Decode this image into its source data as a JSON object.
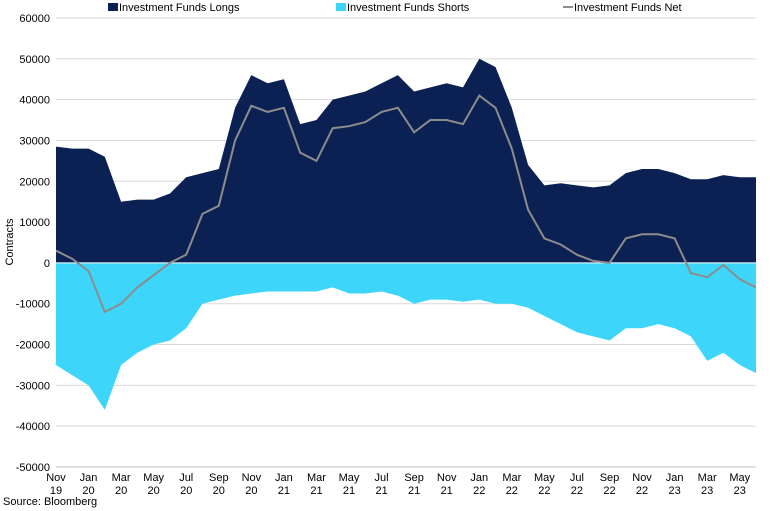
{
  "chart_data": {
    "type": "area",
    "ylabel": "Contracts",
    "source": "Source: Bloomberg",
    "ylim": [
      -50000,
      60000
    ],
    "yticks": [
      60000,
      50000,
      40000,
      30000,
      20000,
      10000,
      0,
      -10000,
      -20000,
      -30000,
      -40000,
      -50000
    ],
    "ytick_labels": [
      "60000",
      "50000",
      "40000",
      "30000",
      "20000",
      "10000",
      "0",
      "-10000",
      "-20000",
      "-30000",
      "-40000",
      "-50000"
    ],
    "x_ticks": [
      {
        "month": "Nov",
        "year": "19"
      },
      {
        "month": "Jan",
        "year": "20"
      },
      {
        "month": "Mar",
        "year": "20"
      },
      {
        "month": "May",
        "year": "20"
      },
      {
        "month": "Jul",
        "year": "20"
      },
      {
        "month": "Sep",
        "year": "20"
      },
      {
        "month": "Nov",
        "year": "20"
      },
      {
        "month": "Jan",
        "year": "21"
      },
      {
        "month": "Mar",
        "year": "21"
      },
      {
        "month": "May",
        "year": "21"
      },
      {
        "month": "Jul",
        "year": "21"
      },
      {
        "month": "Sep",
        "year": "21"
      },
      {
        "month": "Nov",
        "year": "21"
      },
      {
        "month": "Jan",
        "year": "22"
      },
      {
        "month": "Mar",
        "year": "22"
      },
      {
        "month": "May",
        "year": "22"
      },
      {
        "month": "Jul",
        "year": "22"
      },
      {
        "month": "Sep",
        "year": "22"
      },
      {
        "month": "Nov",
        "year": "22"
      },
      {
        "month": "Jan",
        "year": "23"
      },
      {
        "month": "Mar",
        "year": "23"
      },
      {
        "month": "May",
        "year": "23"
      }
    ],
    "x": [
      "2019-11",
      "2019-12",
      "2020-01",
      "2020-02",
      "2020-03",
      "2020-04",
      "2020-05",
      "2020-06",
      "2020-07",
      "2020-08",
      "2020-09",
      "2020-10",
      "2020-11",
      "2020-12",
      "2021-01",
      "2021-02",
      "2021-03",
      "2021-04",
      "2021-05",
      "2021-06",
      "2021-07",
      "2021-08",
      "2021-09",
      "2021-10",
      "2021-11",
      "2021-12",
      "2022-01",
      "2022-02",
      "2022-03",
      "2022-04",
      "2022-05",
      "2022-06",
      "2022-07",
      "2022-08",
      "2022-09",
      "2022-10",
      "2022-11",
      "2022-12",
      "2023-01",
      "2023-02",
      "2023-03",
      "2023-04",
      "2023-05",
      "2023-06"
    ],
    "series": [
      {
        "name": "Investment Funds Longs",
        "color": "#0b2154",
        "values": [
          28500,
          28000,
          28000,
          26000,
          15000,
          15500,
          15500,
          17000,
          21000,
          22000,
          23000,
          38000,
          46000,
          44000,
          45000,
          34000,
          35000,
          40000,
          41000,
          42000,
          44000,
          46000,
          42000,
          43000,
          44000,
          43000,
          50000,
          48000,
          38000,
          24000,
          19000,
          19500,
          19000,
          18500,
          19000,
          22000,
          23000,
          23000,
          22000,
          20500,
          20500,
          21500,
          21000,
          21000
        ]
      },
      {
        "name": "Investment Funds Shorts",
        "color": "#3dd6fa",
        "values": [
          -25000,
          -27500,
          -30000,
          -36000,
          -25000,
          -22000,
          -20000,
          -19000,
          -16000,
          -10000,
          -9000,
          -8000,
          -7500,
          -7000,
          -7000,
          -7000,
          -7000,
          -6000,
          -7500,
          -7500,
          -7000,
          -8000,
          -10000,
          -9000,
          -9000,
          -9500,
          -9000,
          -10000,
          -10000,
          -11000,
          -13000,
          -15000,
          -17000,
          -18000,
          -19000,
          -16000,
          -16000,
          -15000,
          -16000,
          -18000,
          -24000,
          -22000,
          -25000,
          -27000
        ]
      },
      {
        "name": "Investment Funds Net",
        "color": "#8c8c8c",
        "values": [
          3000,
          1000,
          -2000,
          -12000,
          -10000,
          -6000,
          -3000,
          0,
          2000,
          12000,
          14000,
          30000,
          38500,
          37000,
          38000,
          27000,
          25000,
          33000,
          33500,
          34500,
          37000,
          38000,
          32000,
          35000,
          35000,
          34000,
          41000,
          38000,
          28000,
          13000,
          6000,
          4500,
          2000,
          500,
          0,
          6000,
          7000,
          7000,
          6000,
          -2500,
          -3500,
          -500,
          -4000,
          -6000
        ]
      }
    ],
    "legend_position": "top",
    "grid": true
  }
}
